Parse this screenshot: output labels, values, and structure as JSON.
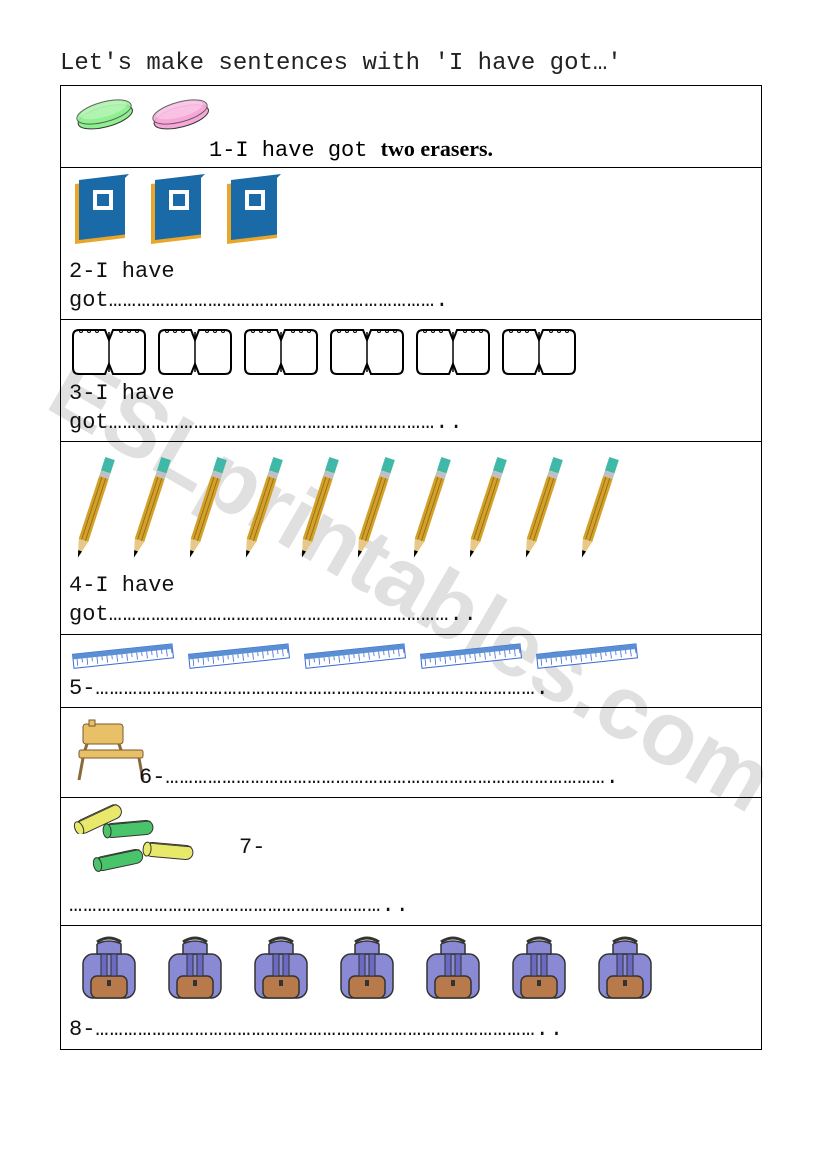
{
  "title": "Let's make sentences with 'I have got…'",
  "watermark": "ESLprintables.com",
  "rows": [
    {
      "icon_type": "eraser",
      "count": 2,
      "colors": [
        "#8ef08e",
        "#f7a8d8"
      ],
      "example_lead": "1-I have got ",
      "example_bold": "two erasers.",
      "prompt": "",
      "dots": ""
    },
    {
      "icon_type": "book",
      "count": 3,
      "colors": [
        "#1a6aa8",
        "#e8a62a"
      ],
      "prompt": "2-I have\ngot",
      "dots": "……………………………………………………………."
    },
    {
      "icon_type": "notebook",
      "count": 6,
      "colors": [
        "#ffffff",
        "#000000"
      ],
      "prompt": "3-I have\ngot",
      "dots": "…………………………………………………………….."
    },
    {
      "icon_type": "pencil",
      "count": 10,
      "colors": [
        "#d4a028",
        "#3fb8a8"
      ],
      "prompt": "4-I have\ngot",
      "dots": "……………………………………………………………….."
    },
    {
      "icon_type": "ruler",
      "count": 5,
      "colors": [
        "#5a8fd4",
        "#ffffff"
      ],
      "prompt": "5-",
      "dots": "…………………………………………………………………………………."
    },
    {
      "icon_type": "desk",
      "count": 1,
      "colors": [
        "#e8c068",
        "#8a6a3a"
      ],
      "prompt": "6-",
      "dots": "…………………………………………………………………………………."
    },
    {
      "icon_type": "pencilcase",
      "count": 4,
      "colors": [
        "#e8e86a",
        "#4ac46a",
        "#e8e86a",
        "#4ac46a"
      ],
      "prompt": "7-\n",
      "dots": "………………………………………………………….."
    },
    {
      "icon_type": "bag",
      "count": 7,
      "colors": [
        "#8a8ad4",
        "#b87a4a"
      ],
      "prompt": "8-",
      "dots": "………………………………………………………………………………….."
    }
  ]
}
